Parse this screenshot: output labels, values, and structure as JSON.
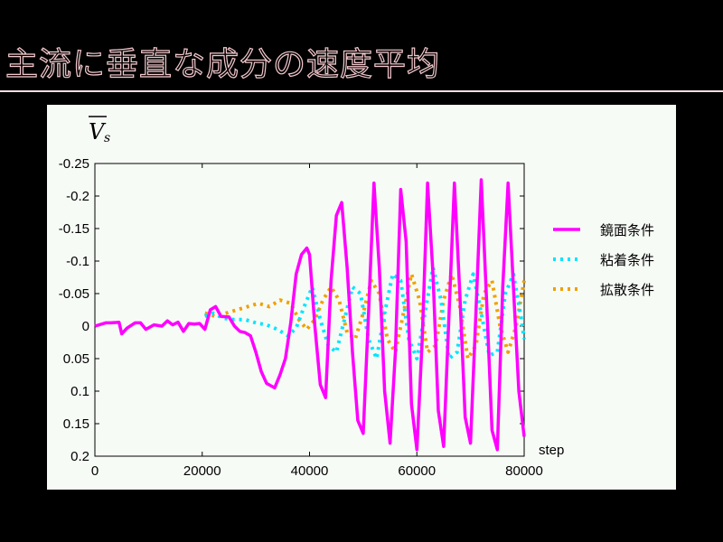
{
  "slide": {
    "title": "主流に垂直な成分の速度平均"
  },
  "colors": {
    "background": "#000000",
    "title": "#f2c8cc",
    "panel": "#f7fbf6",
    "mirror": "#ff00ff",
    "noslip": "#00e5ff",
    "diffuse": "#f0a000"
  },
  "chart_data": {
    "type": "line",
    "ylabel_main": "V",
    "ylabel_sub": "s",
    "xlabel": "step",
    "xlim": [
      0,
      80000
    ],
    "ylim": [
      -0.25,
      0.2
    ],
    "y_inverted": true,
    "grid": false,
    "legend_position": "right",
    "x_ticks": [
      "0",
      "20000",
      "40000",
      "60000",
      "80000"
    ],
    "x_tick_values": [
      0,
      20000,
      40000,
      60000,
      80000
    ],
    "y_ticks": [
      "-0.25",
      "-0.2",
      "-0.15",
      "-0.1",
      "-0.05",
      "0",
      "0.05",
      "0.1",
      "0.15",
      "0.2"
    ],
    "y_tick_values": [
      -0.25,
      -0.2,
      -0.15,
      -0.1,
      -0.05,
      0,
      0.05,
      0.1,
      0.15,
      0.2
    ],
    "series": [
      {
        "name": "鏡面条件",
        "style": "solid",
        "color": "#ff00ff",
        "x": [
          0,
          2000,
          3000,
          4500,
          5000,
          6000,
          7500,
          8500,
          9500,
          11000,
          12500,
          13500,
          14500,
          15500,
          16500,
          17500,
          18500,
          19500,
          20500,
          21500,
          22500,
          23500,
          25000,
          26000,
          27000,
          28000,
          29000,
          30000,
          31000,
          32000,
          33500,
          34500,
          35500,
          36500,
          37500,
          38500,
          39500,
          40000,
          41000,
          42000,
          43000,
          44000,
          45000,
          46000,
          47000,
          48000,
          49000,
          50000,
          51000,
          52000,
          53000,
          54000,
          55000,
          56000,
          57000,
          58000,
          59000,
          60000,
          61000,
          62000,
          63000,
          64000,
          65000,
          66000,
          67000,
          68000,
          69000,
          70000,
          71000,
          72000,
          73000,
          74000,
          75000,
          76000,
          77000,
          78000,
          79000,
          80000
        ],
        "values": [
          0,
          -0.005,
          -0.005,
          -0.006,
          0.012,
          0.003,
          -0.005,
          -0.005,
          0.005,
          -0.002,
          0.0,
          -0.008,
          -0.002,
          -0.006,
          0.008,
          -0.004,
          -0.003,
          -0.004,
          0.005,
          -0.025,
          -0.03,
          -0.015,
          -0.014,
          0.0,
          0.008,
          0.01,
          0.015,
          0.04,
          0.07,
          0.088,
          0.095,
          0.075,
          0.05,
          -0.005,
          -0.08,
          -0.11,
          -0.12,
          -0.11,
          0.0,
          0.09,
          0.11,
          -0.07,
          -0.17,
          -0.19,
          -0.09,
          0.04,
          0.145,
          0.165,
          -0.02,
          -0.22,
          -0.09,
          0.1,
          0.18,
          0.04,
          -0.21,
          -0.13,
          0.12,
          0.19,
          0.02,
          -0.22,
          -0.08,
          0.13,
          0.185,
          -0.02,
          -0.22,
          -0.05,
          0.14,
          0.18,
          -0.02,
          -0.225,
          -0.04,
          0.16,
          0.19,
          -0.06,
          -0.22,
          -0.06,
          0.1,
          0.17
        ]
      },
      {
        "name": "粘着条件",
        "style": "dotted",
        "color": "#00e5ff",
        "x": [
          20500,
          22000,
          24000,
          26000,
          28000,
          30000,
          32000,
          34000,
          36000,
          37500,
          39000,
          40500,
          42000,
          43500,
          45000,
          46500,
          48000,
          49500,
          51000,
          52500,
          54000,
          55500,
          57000,
          58500,
          60000,
          61500,
          63000,
          64500,
          66000,
          67500,
          69000,
          70500,
          72000,
          73500,
          75000,
          76500,
          78000,
          79500,
          80000
        ],
        "values": [
          -0.015,
          -0.02,
          -0.012,
          -0.01,
          -0.01,
          -0.005,
          -0.002,
          0.005,
          0.015,
          0.003,
          -0.03,
          -0.06,
          -0.01,
          0.03,
          0.04,
          -0.01,
          -0.06,
          -0.05,
          0.02,
          0.05,
          -0.02,
          -0.08,
          -0.07,
          0.02,
          0.05,
          -0.02,
          -0.09,
          -0.04,
          0.05,
          0.04,
          -0.04,
          -0.08,
          -0.02,
          0.045,
          0.04,
          -0.05,
          -0.08,
          -0.01,
          0.02
        ]
      },
      {
        "name": "拡散条件",
        "style": "dotted",
        "color": "#f0a000",
        "x": [
          20500,
          22500,
          24500,
          26500,
          28500,
          30500,
          32500,
          34500,
          36500,
          38000,
          39500,
          41000,
          42500,
          44000,
          45500,
          47000,
          48500,
          50000,
          51500,
          53000,
          54500,
          56000,
          57500,
          59000,
          60500,
          62000,
          63500,
          65000,
          66500,
          68000,
          69500,
          71000,
          72500,
          74000,
          75500,
          77000,
          78500,
          80000
        ],
        "values": [
          -0.02,
          -0.015,
          -0.02,
          -0.025,
          -0.03,
          -0.035,
          -0.03,
          -0.04,
          -0.035,
          -0.01,
          0.005,
          -0.01,
          -0.04,
          -0.06,
          -0.04,
          0.01,
          0.02,
          -0.02,
          -0.07,
          -0.05,
          0.02,
          0.04,
          -0.02,
          -0.08,
          -0.04,
          0.04,
          0.03,
          -0.04,
          -0.08,
          -0.03,
          0.05,
          0.03,
          -0.05,
          -0.07,
          0.0,
          0.04,
          0.0,
          -0.07
        ]
      }
    ]
  }
}
